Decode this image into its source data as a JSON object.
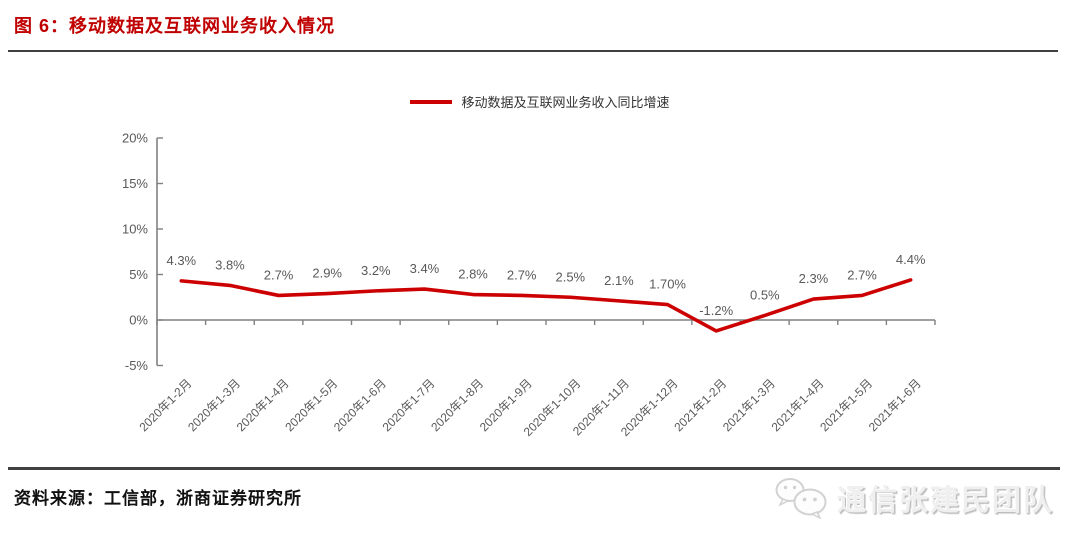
{
  "header": {
    "title": "图 6：移动数据及互联网业务收入情况"
  },
  "legend": {
    "label": "移动数据及互联网业务收入同比增速"
  },
  "chart_data": {
    "type": "line",
    "title": "移动数据及互联网业务收入情况",
    "categories": [
      "2020年1-2月",
      "2020年1-3月",
      "2020年1-4月",
      "2020年1-5月",
      "2020年1-6月",
      "2020年1-7月",
      "2020年1-8月",
      "2020年1-9月",
      "2020年1-10月",
      "2020年1-11月",
      "2020年1-12月",
      "2021年1-2月",
      "2021年1-3月",
      "2021年1-4月",
      "2021年1-5月",
      "2021年1-6月"
    ],
    "series": [
      {
        "name": "移动数据及互联网业务收入同比增速",
        "values": [
          4.3,
          3.8,
          2.7,
          2.9,
          3.2,
          3.4,
          2.8,
          2.7,
          2.5,
          2.1,
          1.7,
          -1.2,
          0.5,
          2.3,
          2.7,
          4.4
        ],
        "labels": [
          "4.3%",
          "3.8%",
          "2.7%",
          "2.9%",
          "3.2%",
          "3.4%",
          "2.8%",
          "2.7%",
          "2.5%",
          "2.1%",
          "1.70%",
          "-1.2%",
          "0.5%",
          "2.3%",
          "2.7%",
          "4.4%"
        ]
      }
    ],
    "xlabel": "",
    "ylabel": "",
    "ylim": [
      -5,
      20
    ],
    "ytick_step": 5,
    "ytick_labels": [
      "-5%",
      "0%",
      "5%",
      "10%",
      "15%",
      "20%"
    ],
    "grid": false,
    "legend_position": "top-center",
    "x_label_rotation": 45
  },
  "footer": {
    "source": "资料来源：工信部，浙商证券研究所"
  },
  "watermark": {
    "icon": "wechat-icon",
    "text": "通信张建民团队"
  },
  "colors": {
    "accent_red": "#C00000",
    "line_red": "#CC0000",
    "label_gray": "#595959",
    "axis_gray": "#808080",
    "rule_dark": "#404040"
  }
}
